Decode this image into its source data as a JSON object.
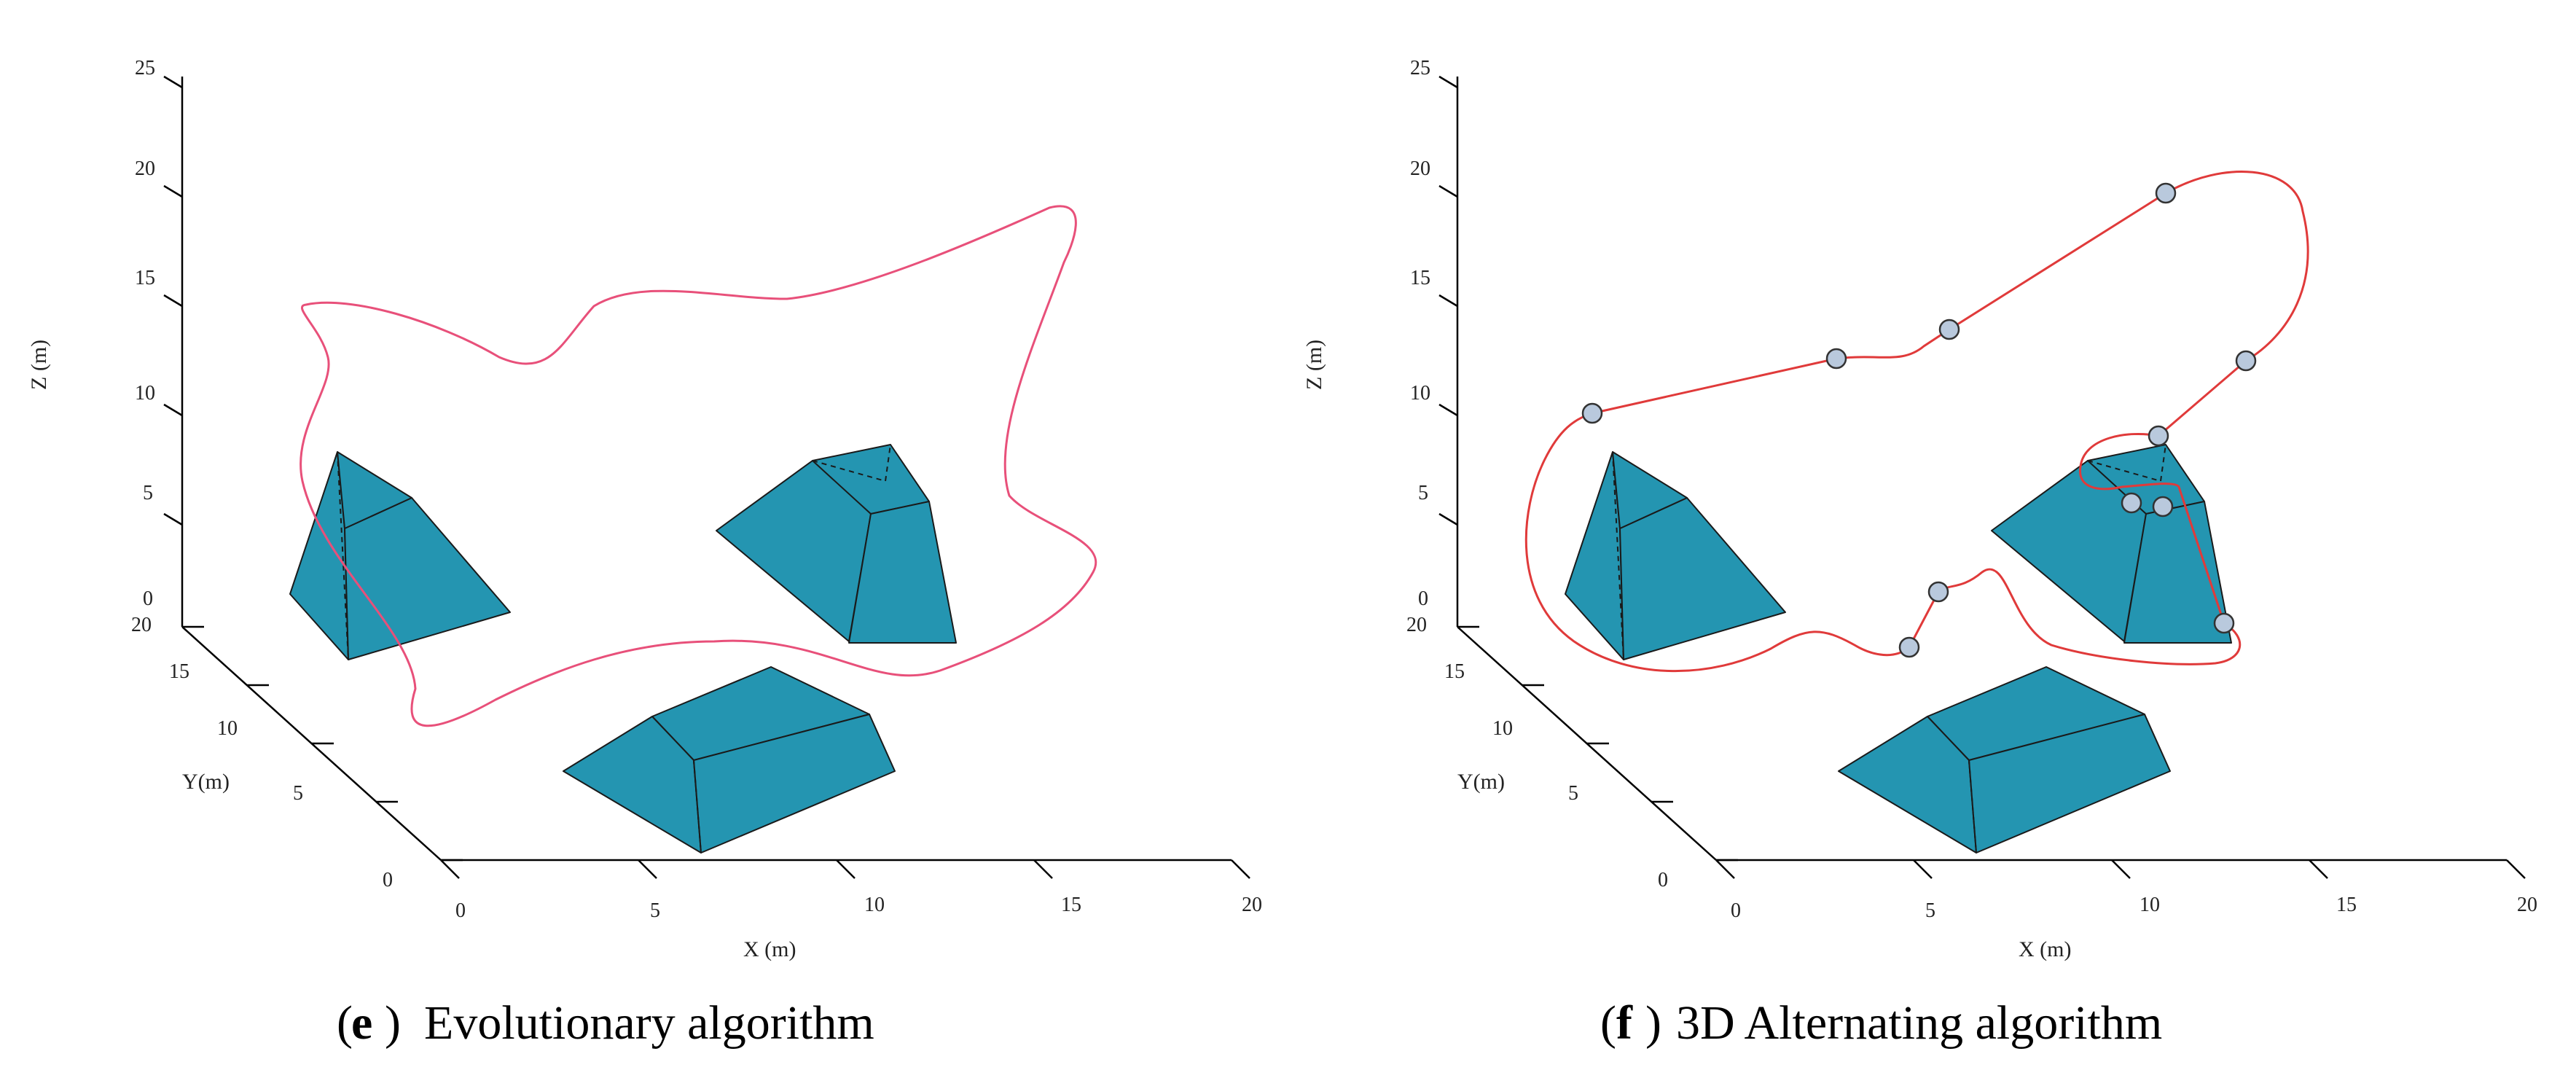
{
  "chart_data": [
    {
      "type": "3d-path",
      "caption_letter": "e",
      "caption_text": "Evolutionary algorithm",
      "xlabel": "X (m)",
      "ylabel": "Y(m)",
      "zlabel": "Z (m)",
      "xticks": [
        "0",
        "5",
        "10",
        "15",
        "20"
      ],
      "yticks": [
        "0",
        "5",
        "10",
        "15",
        "20"
      ],
      "zticks": [
        "0",
        "5",
        "10",
        "15",
        "20",
        "25"
      ],
      "xlim": [
        0,
        20
      ],
      "ylim": [
        0,
        20
      ],
      "zlim": [
        0,
        25
      ],
      "obstacles": [
        "pyramid",
        "truncated-prism",
        "box"
      ],
      "path_color": "#e8507a",
      "waypoints": []
    },
    {
      "type": "3d-path",
      "caption_letter": "f",
      "caption_text": "3D Alternating algorithm",
      "xlabel": "X (m)",
      "ylabel": "Y(m)",
      "zlabel": "Z (m)",
      "xticks": [
        "0",
        "5",
        "10",
        "15",
        "20"
      ],
      "yticks": [
        "0",
        "5",
        "10",
        "15",
        "20"
      ],
      "zticks": [
        "0",
        "5",
        "10",
        "15",
        "20",
        "25"
      ],
      "xlim": [
        0,
        20
      ],
      "ylim": [
        0,
        20
      ],
      "zlim": [
        0,
        25
      ],
      "obstacles": [
        "pyramid",
        "truncated-prism",
        "box"
      ],
      "path_color": "#e03a3a",
      "waypoints": [
        "w1",
        "w2",
        "w3",
        "w4",
        "w5",
        "w6",
        "w7",
        "w8",
        "w9",
        "w10",
        "w11"
      ]
    }
  ],
  "colors": {
    "obstacle_fill": "#2495b1",
    "obstacle_edge": "#1a1a1a",
    "axis": "#000000",
    "waypoint_fill": "#b9c9dd",
    "waypoint_edge": "#333333"
  }
}
